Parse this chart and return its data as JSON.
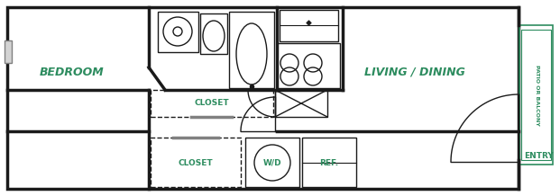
{
  "bg_color": "#ffffff",
  "wall_color": "#1a1a1a",
  "green_color": "#2d8c5f",
  "text_green": "#2d8c5f",
  "figsize": [
    6.21,
    2.18
  ],
  "dpi": 100,
  "room_labels": {
    "bedroom": "BEDROOM",
    "living_dining": "LIVING / DINING",
    "closet1": "CLOSET",
    "closet2": "CLOSET",
    "wd": "W/D",
    "ref": "REF.",
    "patio": "PATIO OR BALCONY",
    "entry": "ENTRY"
  }
}
